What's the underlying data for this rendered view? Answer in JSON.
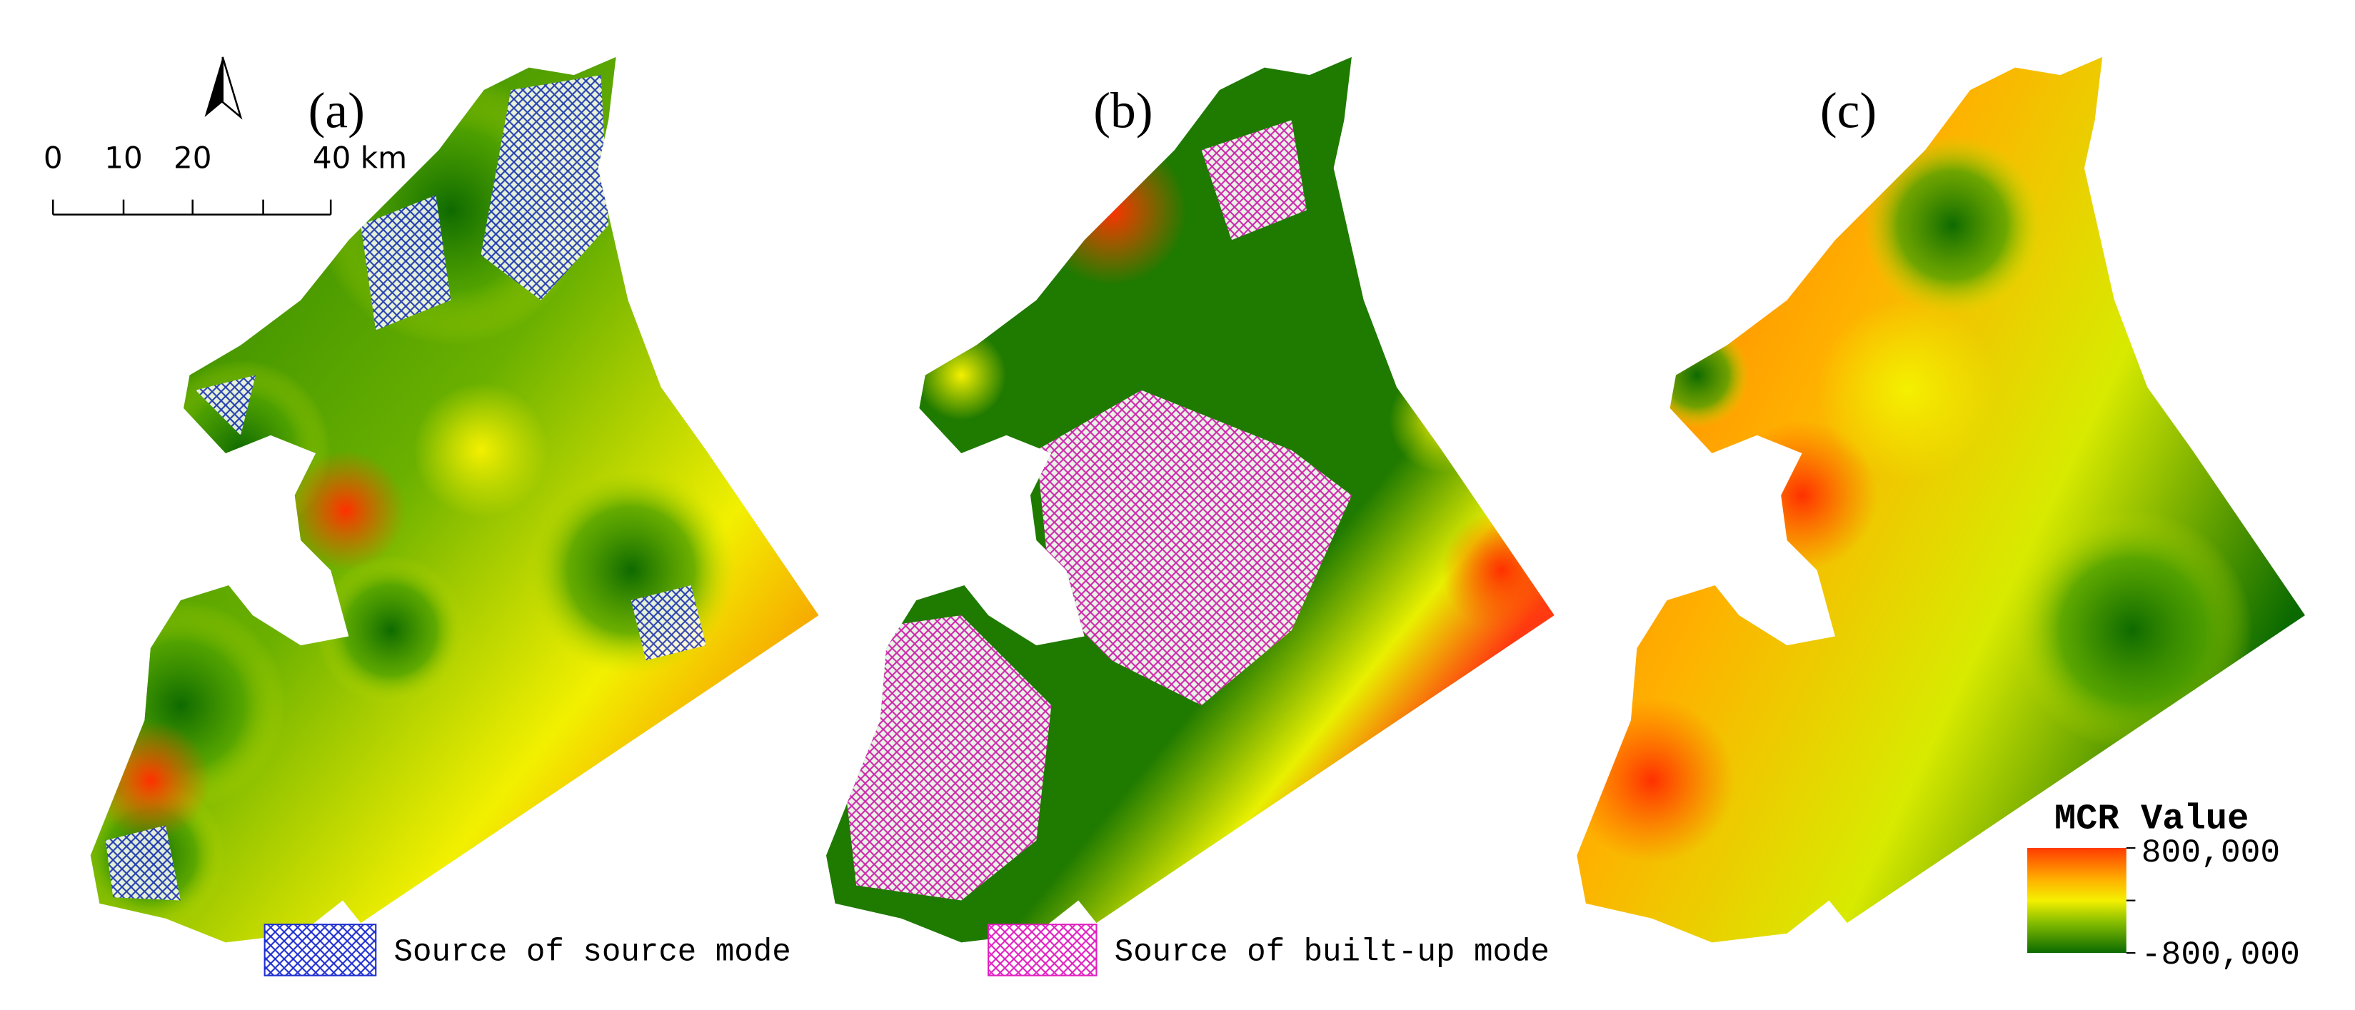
{
  "panels": [
    {
      "label": "(a)"
    },
    {
      "label": "(b)"
    },
    {
      "label": "(c)"
    }
  ],
  "scale_bar": {
    "ticks": [
      "0",
      "10",
      "20",
      "40 km"
    ]
  },
  "legend": {
    "items": [
      {
        "label": "Source of source mode"
      },
      {
        "label": "Source of built-up mode"
      }
    ]
  },
  "mcr_legend": {
    "title": "MCR Value",
    "high": "800,000",
    "low": "-800,000"
  }
}
